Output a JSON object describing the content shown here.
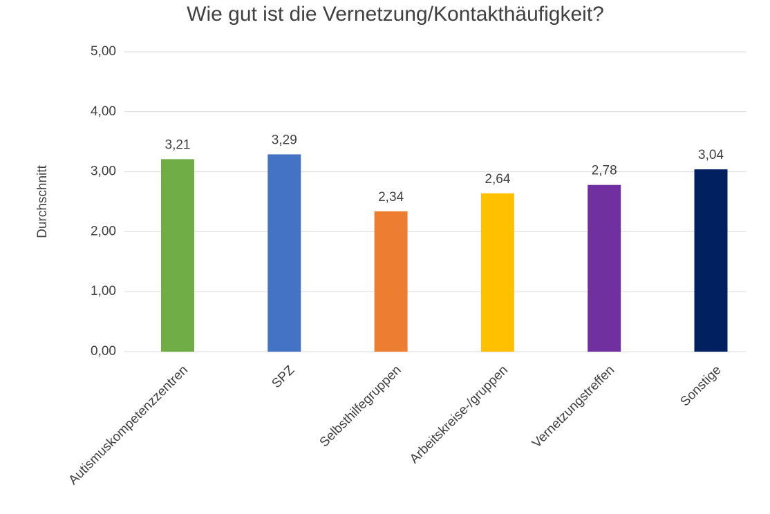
{
  "chart_data": {
    "type": "bar",
    "title": "Wie gut ist die Vernetzung/Kontakthäufigkeit?",
    "y_label": "Durchschnitt",
    "categories": [
      "Autismuskompetenzzentren",
      "SPZ",
      "Selbsthilfegruppen",
      "Arbeitskreise-/gruppen",
      "Vernetzungstreffen",
      "Sonstige"
    ],
    "values": [
      3.21,
      3.29,
      2.34,
      2.64,
      2.78,
      3.04
    ],
    "value_labels": [
      "3,21",
      "3,29",
      "2,34",
      "2,64",
      "2,78",
      "3,04"
    ],
    "colors": [
      "#70ad47",
      "#4472c4",
      "#ed7d31",
      "#ffc000",
      "#7030a0",
      "#002060"
    ],
    "ylim": [
      0,
      5
    ],
    "yticks": [
      {
        "value": 0,
        "label": "0,00"
      },
      {
        "value": 1,
        "label": "1,00"
      },
      {
        "value": 2,
        "label": "2,00"
      },
      {
        "value": 3,
        "label": "3,00"
      },
      {
        "value": 4,
        "label": "4,00"
      },
      {
        "value": 5,
        "label": "5,00"
      }
    ],
    "grid": true
  }
}
